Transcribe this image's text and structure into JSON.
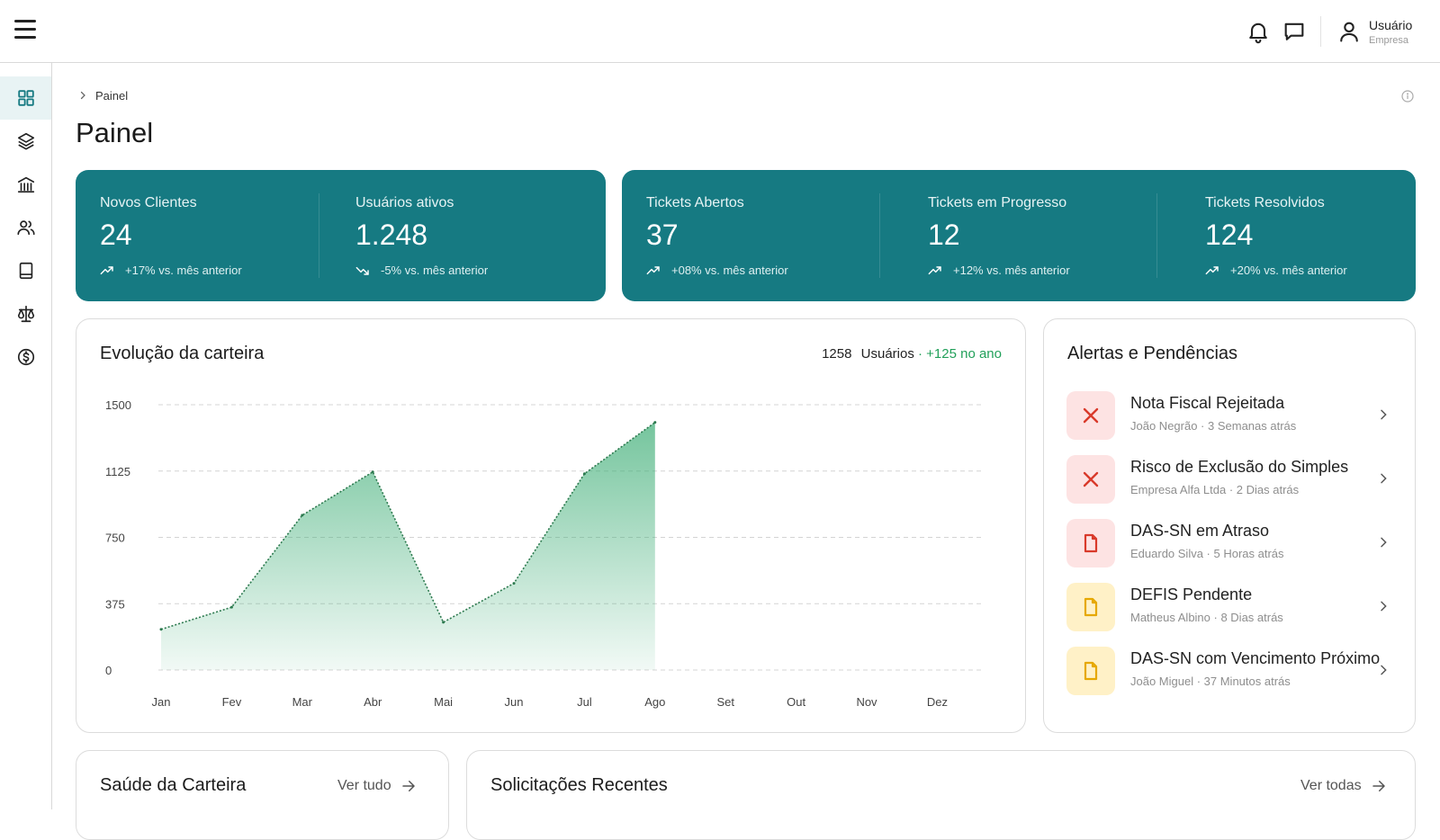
{
  "header": {
    "user_name": "Usuário",
    "user_company": "Empresa"
  },
  "sidebar": {
    "items": [
      {
        "icon": "dashboard-grid-icon",
        "active": true
      },
      {
        "icon": "layers-icon",
        "active": false
      },
      {
        "icon": "institution-icon",
        "active": false
      },
      {
        "icon": "users-icon",
        "active": false
      },
      {
        "icon": "book-icon",
        "active": false
      },
      {
        "icon": "scale-icon",
        "active": false
      },
      {
        "icon": "dollar-circle-icon",
        "active": false
      }
    ]
  },
  "breadcrumb": {
    "label": "Painel"
  },
  "page": {
    "title": "Painel"
  },
  "stats": [
    {
      "label": "Novos Clientes",
      "value": "24",
      "trend": "+17% vs. mês anterior",
      "direction": "up"
    },
    {
      "label": "Usuários ativos",
      "value": "1.248",
      "trend": "-5% vs. mês anterior",
      "direction": "down"
    },
    {
      "label": "Tickets Abertos",
      "value": "37",
      "trend": "+08% vs. mês anterior",
      "direction": "up"
    },
    {
      "label": "Tickets em Progresso",
      "value": "12",
      "trend": "+12% vs. mês anterior",
      "direction": "up"
    },
    {
      "label": "Tickets Resolvidos",
      "value": "124",
      "trend": "+20% vs. mês anterior",
      "direction": "up"
    }
  ],
  "colors": {
    "accent": "#167a82",
    "chart_fill": "#3fae77",
    "chart_line": "#2d7a4f",
    "growth": "#22a05a",
    "alert_red": "#d93a2b",
    "alert_yellow": "#e6a800"
  },
  "chart_panel": {
    "title": "Evolução da carteira",
    "summary_value": "1258",
    "summary_unit": "Usuários",
    "summary_growth": "· +125 no ano"
  },
  "chart_data": {
    "type": "area",
    "categories": [
      "Jan",
      "Fev",
      "Mar",
      "Abr",
      "Mai",
      "Jun",
      "Jul",
      "Ago",
      "Set",
      "Out",
      "Nov",
      "Dez"
    ],
    "series": [
      {
        "values": [
          230,
          355,
          875,
          1120,
          270,
          490,
          1110,
          1400,
          null,
          null,
          null,
          null
        ]
      }
    ],
    "yticks": [
      1500,
      1125,
      750,
      375,
      0
    ],
    "ylim": [
      0,
      1500
    ],
    "grid": true,
    "title": "",
    "xlabel": "",
    "ylabel": ""
  },
  "alerts_panel": {
    "title": "Alertas e Pendências",
    "items": [
      {
        "title": "Nota Fiscal Rejeitada",
        "meta": "João Negrão · 3 Semanas atrás",
        "icon": "close-x-icon",
        "tone": "red"
      },
      {
        "title": "Risco de Exclusão do Simples",
        "meta": "Empresa Alfa Ltda · 2 Dias atrás",
        "icon": "close-x-icon",
        "tone": "red"
      },
      {
        "title": "DAS-SN em Atraso",
        "meta": "Eduardo Silva · 5 Horas atrás",
        "icon": "document-icon",
        "tone": "red"
      },
      {
        "title": "DEFIS Pendente",
        "meta": "Matheus Albino · 8 Dias atrás",
        "icon": "document-icon",
        "tone": "yellow"
      },
      {
        "title": "DAS-SN com Vencimento Próximo",
        "meta": "João Miguel · 37 Minutos atrás",
        "icon": "document-icon",
        "tone": "yellow"
      }
    ]
  },
  "health_panel": {
    "title": "Saúde da Carteira",
    "link": "Ver tudo"
  },
  "requests_panel": {
    "title": "Solicitações Recentes",
    "link": "Ver todas"
  }
}
